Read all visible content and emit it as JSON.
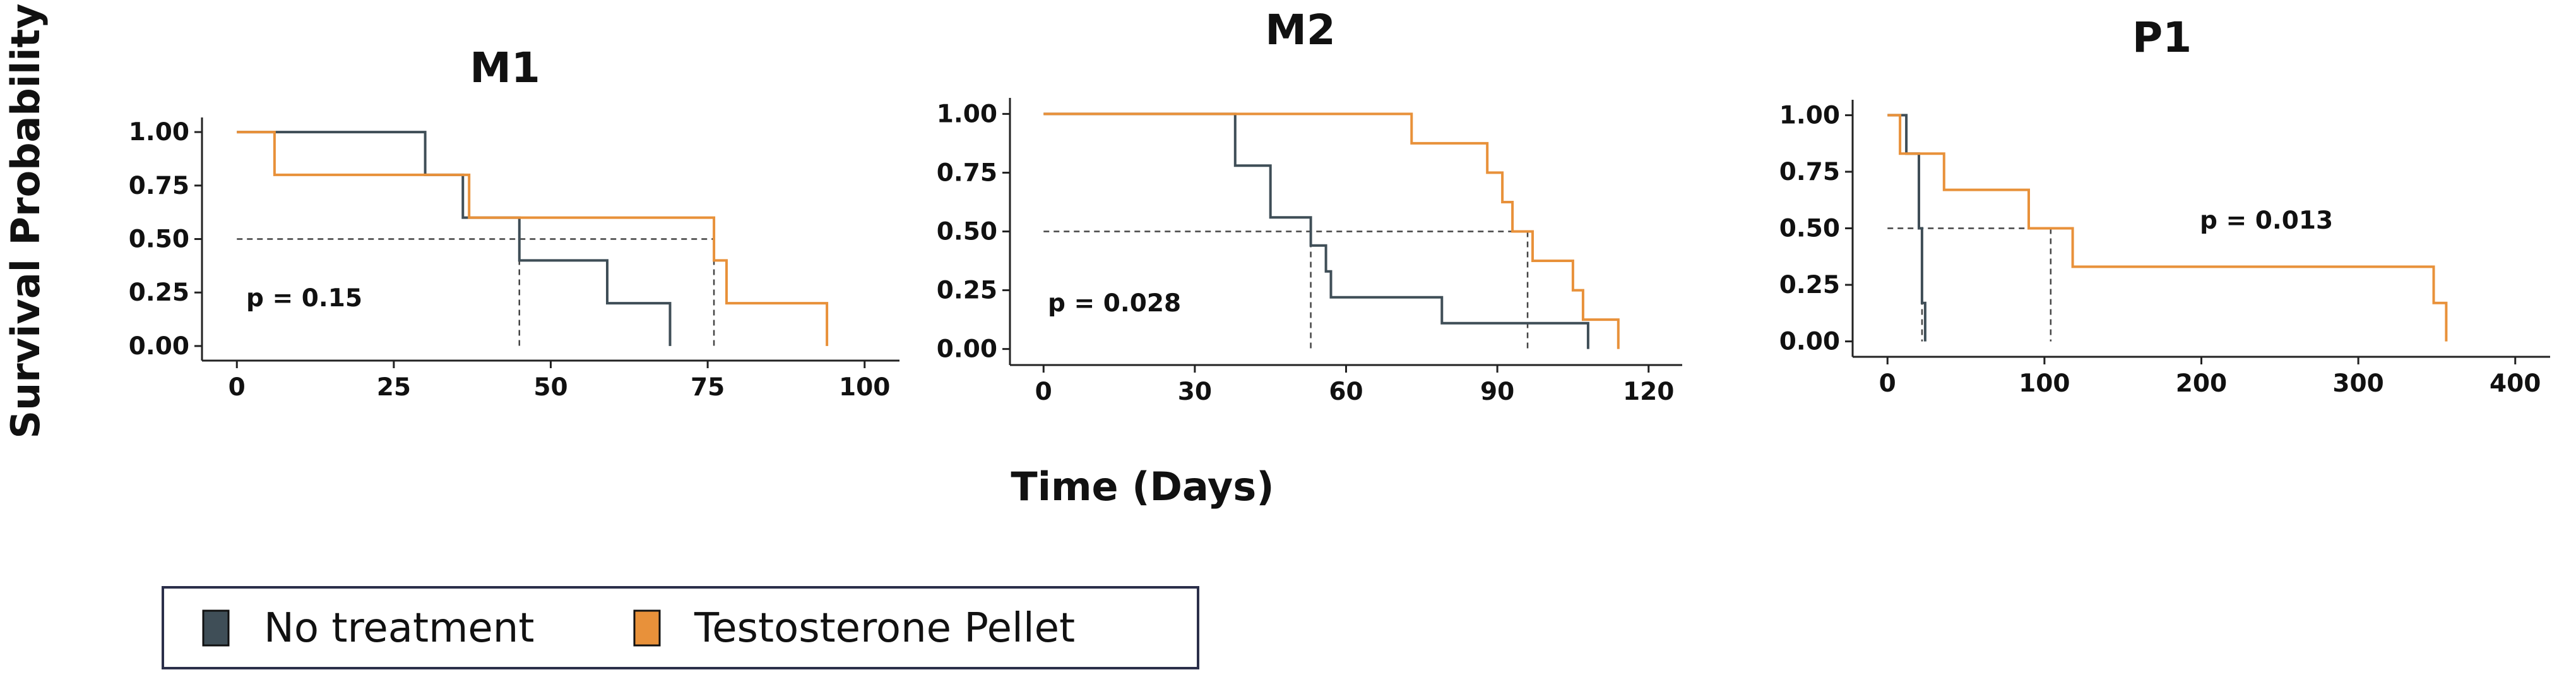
{
  "chart_data": [
    {
      "type": "line",
      "subtype": "kaplan-meier-step",
      "title": "M1",
      "xlim": [
        0,
        100
      ],
      "ylim": [
        0,
        1
      ],
      "x_ticks": [
        "0",
        "25",
        "50",
        "75",
        "100"
      ],
      "y_ticks": [
        "0.00",
        "0.25",
        "0.50",
        "0.75",
        "1.00"
      ],
      "annotation": "p = 0.15",
      "median_line": 0.5,
      "medians": [
        45,
        76
      ],
      "series": [
        {
          "name": "No treatment",
          "points": [
            [
              0,
              1.0
            ],
            [
              30,
              1.0
            ],
            [
              30,
              0.8
            ],
            [
              36,
              0.8
            ],
            [
              36,
              0.6
            ],
            [
              45,
              0.6
            ],
            [
              45,
              0.4
            ],
            [
              59,
              0.4
            ],
            [
              59,
              0.2
            ],
            [
              69,
              0.2
            ],
            [
              69,
              0.0
            ]
          ]
        },
        {
          "name": "Testosterone Pellet",
          "points": [
            [
              0,
              1.0
            ],
            [
              6,
              1.0
            ],
            [
              6,
              0.8
            ],
            [
              37,
              0.8
            ],
            [
              37,
              0.6
            ],
            [
              76,
              0.6
            ],
            [
              76,
              0.4
            ],
            [
              78,
              0.4
            ],
            [
              78,
              0.2
            ],
            [
              94,
              0.2
            ],
            [
              94,
              0.0
            ]
          ]
        }
      ]
    },
    {
      "type": "line",
      "subtype": "kaplan-meier-step",
      "title": "M2",
      "xlim": [
        0,
        120
      ],
      "ylim": [
        0,
        1
      ],
      "x_ticks": [
        "0",
        "30",
        "60",
        "90",
        "120"
      ],
      "y_ticks": [
        "0.00",
        "0.25",
        "0.50",
        "0.75",
        "1.00"
      ],
      "annotation": "p = 0.028",
      "median_line": 0.5,
      "medians": [
        53,
        96
      ],
      "series": [
        {
          "name": "No treatment",
          "points": [
            [
              0,
              1.0
            ],
            [
              38,
              1.0
            ],
            [
              38,
              0.78
            ],
            [
              45,
              0.78
            ],
            [
              45,
              0.56
            ],
            [
              53,
              0.56
            ],
            [
              53,
              0.44
            ],
            [
              56,
              0.44
            ],
            [
              56,
              0.33
            ],
            [
              57,
              0.33
            ],
            [
              57,
              0.22
            ],
            [
              79,
              0.22
            ],
            [
              79,
              0.11
            ],
            [
              108,
              0.11
            ],
            [
              108,
              0.0
            ]
          ]
        },
        {
          "name": "Testosterone Pellet",
          "points": [
            [
              0,
              1.0
            ],
            [
              73,
              1.0
            ],
            [
              73,
              0.875
            ],
            [
              88,
              0.875
            ],
            [
              88,
              0.75
            ],
            [
              91,
              0.75
            ],
            [
              91,
              0.625
            ],
            [
              93,
              0.625
            ],
            [
              93,
              0.5
            ],
            [
              97,
              0.5
            ],
            [
              97,
              0.375
            ],
            [
              105,
              0.375
            ],
            [
              105,
              0.25
            ],
            [
              107,
              0.25
            ],
            [
              107,
              0.125
            ],
            [
              114,
              0.125
            ],
            [
              114,
              0.0
            ]
          ]
        }
      ]
    },
    {
      "type": "line",
      "subtype": "kaplan-meier-step",
      "title": "P1",
      "xlim": [
        0,
        400
      ],
      "ylim": [
        0,
        1
      ],
      "x_ticks": [
        "0",
        "100",
        "200",
        "300",
        "400"
      ],
      "y_ticks": [
        "0.00",
        "0.25",
        "0.50",
        "0.75",
        "1.00"
      ],
      "annotation": "p = 0.013",
      "median_line": 0.5,
      "medians": [
        22,
        104
      ],
      "series": [
        {
          "name": "No treatment",
          "points": [
            [
              0,
              1.0
            ],
            [
              12,
              1.0
            ],
            [
              12,
              0.83
            ],
            [
              20,
              0.83
            ],
            [
              20,
              0.5
            ],
            [
              22,
              0.5
            ],
            [
              22,
              0.17
            ],
            [
              24,
              0.17
            ],
            [
              24,
              0.0
            ]
          ]
        },
        {
          "name": "Testosterone Pellet",
          "points": [
            [
              0,
              1.0
            ],
            [
              8,
              1.0
            ],
            [
              8,
              0.83
            ],
            [
              36,
              0.83
            ],
            [
              36,
              0.67
            ],
            [
              90,
              0.67
            ],
            [
              90,
              0.5
            ],
            [
              118,
              0.5
            ],
            [
              118,
              0.33
            ],
            [
              348,
              0.33
            ],
            [
              348,
              0.17
            ],
            [
              356,
              0.17
            ],
            [
              356,
              0.0
            ]
          ]
        }
      ]
    }
  ],
  "axes": {
    "ylabel": "Survival Probability",
    "xlabel": "Time (Days)"
  },
  "legend": {
    "items": [
      {
        "label": "No treatment",
        "color": "#3f4e57"
      },
      {
        "label": "Testosterone Pellet",
        "color": "#e8913a"
      }
    ]
  },
  "colors": {
    "no_treatment": "#3f4e57",
    "testosterone": "#e8913a",
    "axis": "#222222",
    "median": "#444444"
  }
}
